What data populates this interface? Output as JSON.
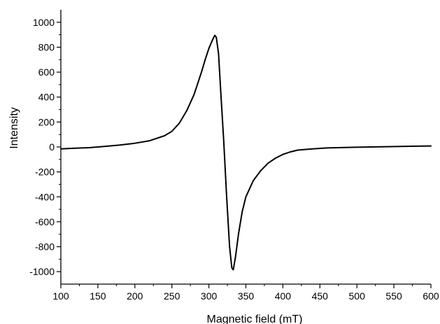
{
  "chart_data": {
    "type": "line",
    "title": "",
    "xlabel": "Magnetic field (mT)",
    "ylabel": "Intensity",
    "xlim": [
      100,
      600
    ],
    "ylim": [
      -1100,
      1100
    ],
    "xticks": [
      100,
      150,
      200,
      250,
      300,
      350,
      400,
      450,
      500,
      550,
      600
    ],
    "yticks": [
      -1000,
      -800,
      -600,
      -400,
      -200,
      0,
      200,
      400,
      600,
      800,
      1000
    ],
    "grid": false,
    "line_color": "#000000",
    "series": [
      {
        "x": [
          100,
          120,
          140,
          160,
          180,
          200,
          220,
          240,
          250,
          260,
          270,
          280,
          290,
          295,
          300,
          305,
          308,
          310,
          313,
          316,
          320,
          324,
          328,
          331,
          333,
          336,
          340,
          345,
          350,
          360,
          370,
          380,
          390,
          400,
          410,
          420,
          440,
          460,
          480,
          500,
          520,
          540,
          560,
          580,
          600
        ],
        "values": [
          -15,
          -10,
          -5,
          5,
          15,
          30,
          50,
          90,
          125,
          190,
          290,
          420,
          600,
          700,
          790,
          860,
          895,
          880,
          750,
          450,
          50,
          -400,
          -800,
          -970,
          -985,
          -880,
          -700,
          -520,
          -400,
          -270,
          -190,
          -130,
          -90,
          -60,
          -40,
          -25,
          -15,
          -8,
          -5,
          -2,
          0,
          2,
          4,
          6,
          8
        ]
      }
    ]
  }
}
